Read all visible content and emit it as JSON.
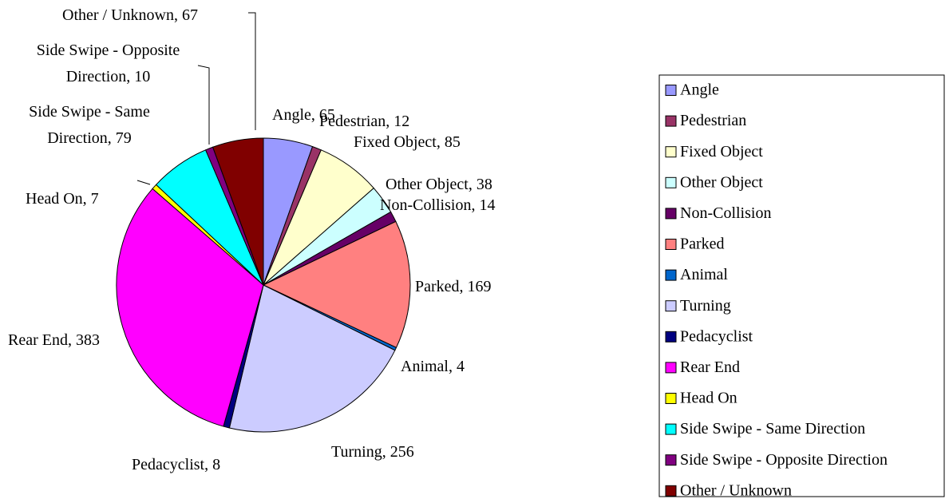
{
  "chart_data": {
    "type": "pie",
    "categories": [
      "Angle",
      "Pedestrian",
      "Fixed Object",
      "Other Object",
      "Non-Collision",
      "Parked",
      "Animal",
      "Turning",
      "Pedacyclist",
      "Rear End",
      "Head On",
      "Side Swipe - Same Direction",
      "Side Swipe - Opposite Direction",
      "Other / Unknown"
    ],
    "values": [
      65,
      12,
      85,
      38,
      14,
      169,
      4,
      256,
      8,
      383,
      7,
      79,
      10,
      67
    ],
    "value_labels": [
      "Angle, 65",
      "Pedestrian, 12",
      "Fixed Object, 85",
      "Other Object, 38",
      "Non-Collision, 14",
      "Parked, 169",
      "Animal, 4",
      "Turning, 256",
      "Pedacyclist, 8",
      "Rear End, 383",
      "Head On, 7",
      "Side Swipe - Same Direction, 79",
      "Side Swipe - Opposite Direction, 10",
      "Other / Unknown, 67"
    ],
    "colors": [
      "#9999ff",
      "#993366",
      "#ffffcc",
      "#ccffff",
      "#660066",
      "#ff8080",
      "#0066cc",
      "#ccccff",
      "#000080",
      "#ff00ff",
      "#ffff00",
      "#00ffff",
      "#800080",
      "#800000"
    ],
    "legend": "right"
  }
}
